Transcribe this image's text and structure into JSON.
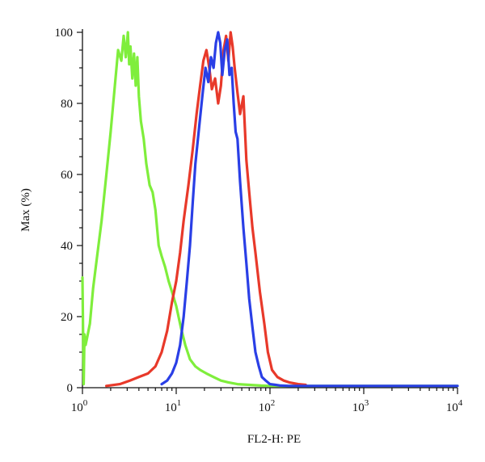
{
  "chart_data": {
    "type": "line",
    "title": "",
    "xlabel": "FL2-H: PE",
    "ylabel": "Max (%)",
    "xscale": "log",
    "xlim": [
      1,
      10000
    ],
    "ylim": [
      0,
      100
    ],
    "grid": false,
    "x_ticks": [
      {
        "value": 1,
        "base": "10",
        "exp": "0"
      },
      {
        "value": 10,
        "base": "10",
        "exp": "1"
      },
      {
        "value": 100,
        "base": "10",
        "exp": "2"
      },
      {
        "value": 1000,
        "base": "10",
        "exp": "3"
      },
      {
        "value": 10000,
        "base": "10",
        "exp": "4"
      }
    ],
    "y_ticks": [
      0,
      20,
      40,
      60,
      80,
      100
    ],
    "series": [
      {
        "color": "#7fee3c",
        "x": [
          1.0,
          1.03,
          1.05,
          1.08,
          1.12,
          1.2,
          1.3,
          1.45,
          1.6,
          1.8,
          2.0,
          2.2,
          2.4,
          2.6,
          2.75,
          2.9,
          3.05,
          3.15,
          3.25,
          3.4,
          3.55,
          3.7,
          3.85,
          4.0,
          4.2,
          4.5,
          4.8,
          5.2,
          5.6,
          6.0,
          6.5,
          7.0,
          7.6,
          8.3,
          9.0,
          10.0,
          11.2,
          12.5,
          14.0,
          16.0,
          18.0,
          21.0,
          25.0,
          30.0,
          36.0,
          45.0,
          60.0,
          80.0,
          100.0,
          200.0,
          500.0,
          1000.0,
          3000.0,
          10000.0
        ],
        "y": [
          31,
          1,
          15,
          12,
          14,
          18,
          28,
          38,
          47,
          60,
          72,
          84,
          95,
          92,
          99,
          93,
          100,
          91,
          96,
          87,
          94,
          85,
          93,
          82,
          75,
          70,
          63,
          57,
          55,
          50,
          40,
          37,
          34,
          30,
          27,
          23,
          17,
          12,
          8,
          6,
          5,
          4,
          3,
          2,
          1.5,
          1,
          0.8,
          0.6,
          0.5,
          0.5,
          0.5,
          0.5,
          0.5,
          0.5
        ]
      },
      {
        "color": "#e8392a",
        "x": [
          1.8,
          2.5,
          3.2,
          4.0,
          5.0,
          6.0,
          7.0,
          8.0,
          9.0,
          10.0,
          11.0,
          12.0,
          13.5,
          15.0,
          16.5,
          18.0,
          19.5,
          21.0,
          22.5,
          24.0,
          26.0,
          28.0,
          30.0,
          32.0,
          34.0,
          36.0,
          38.0,
          40.0,
          42.0,
          45.0,
          48.0,
          52.0,
          56.0,
          60.0,
          65.0,
          70.0,
          78.0,
          87.0,
          95.0,
          105.0,
          120.0,
          140.0,
          160.0,
          200.0,
          240.0
        ],
        "y": [
          0.5,
          1,
          2,
          3,
          4,
          6,
          10,
          16,
          24,
          30,
          38,
          47,
          57,
          67,
          77,
          85,
          92,
          95,
          90,
          84,
          87,
          80,
          85,
          95,
          99,
          92,
          100,
          96,
          90,
          83,
          77,
          82,
          64,
          55,
          45,
          38,
          27,
          18,
          10,
          5,
          3,
          2,
          1.5,
          1,
          0.8
        ]
      },
      {
        "color": "#2a3fe6",
        "x": [
          7.0,
          8.0,
          9.0,
          10.0,
          11.0,
          12.0,
          13.0,
          14.0,
          15.0,
          16.0,
          17.5,
          19.0,
          20.5,
          22.0,
          23.5,
          25.0,
          26.5,
          28.0,
          29.5,
          31.0,
          33.0,
          35.0,
          37.0,
          39.0,
          41.0,
          43.0,
          45.0,
          48.0,
          52.0,
          56.0,
          60.0,
          65.0,
          70.0,
          76.0,
          82.0,
          90.0,
          100.0,
          115.0,
          130.0,
          160.0,
          250.0,
          1000.0,
          10000.0
        ],
        "y": [
          1,
          2,
          4,
          7,
          12,
          20,
          30,
          40,
          52,
          63,
          73,
          82,
          90,
          86,
          93,
          90,
          97,
          100,
          97,
          88,
          95,
          98,
          88,
          90,
          80,
          72,
          70,
          58,
          45,
          35,
          25,
          17,
          10,
          6,
          3,
          2,
          1,
          0.8,
          0.6,
          0.5,
          0.5,
          0.5,
          0.5
        ]
      }
    ]
  }
}
